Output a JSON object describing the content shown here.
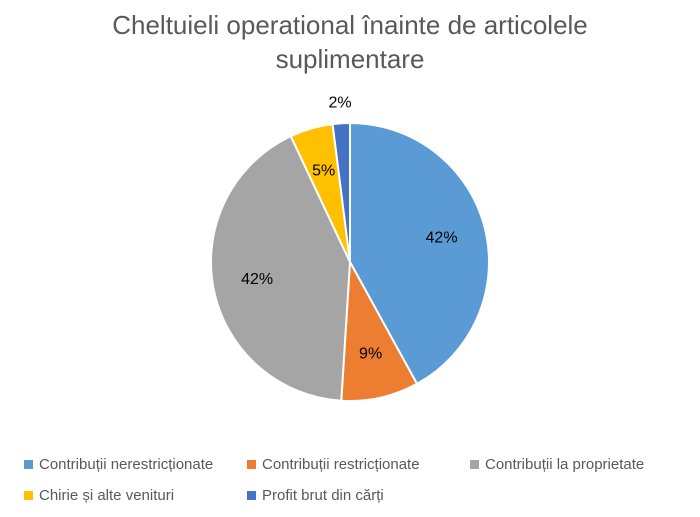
{
  "chart_data": {
    "type": "pie",
    "title": "Cheltuieli operational înainte de articolele suplimentare",
    "categories": [
      "Contribuții nerestricționate",
      "Contribuții restricționate",
      "Contribuții la proprietate",
      "Chirie și alte venituri",
      "Profit brut din cărți"
    ],
    "values": [
      42,
      9,
      42,
      5,
      2
    ],
    "labels": [
      "42%",
      "9%",
      "42%",
      "5%",
      "2%"
    ],
    "colors": [
      "#5B9BD5",
      "#ED7D31",
      "#A5A5A5",
      "#FFC000",
      "#4472C4"
    ],
    "legend_position": "bottom",
    "start_angle_deg": 0,
    "direction": "clockwise"
  }
}
